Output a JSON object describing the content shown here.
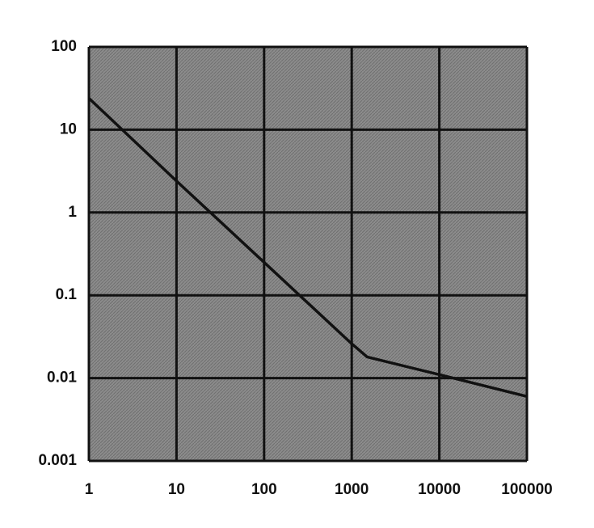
{
  "chart_data": {
    "type": "line",
    "x": [
      1,
      10,
      100,
      1000,
      1500,
      10000,
      100000
    ],
    "values": [
      24,
      2.4,
      0.25,
      0.026,
      0.018,
      0.011,
      0.006
    ],
    "color": "#111111",
    "xscale": "log",
    "yscale": "log",
    "xlim": [
      1,
      100000
    ],
    "ylim": [
      0.001,
      100
    ],
    "xticks": [
      1,
      10,
      100,
      1000,
      10000,
      100000
    ],
    "yticks": [
      0.001,
      0.01,
      0.1,
      1,
      10,
      100
    ],
    "grid": true
  }
}
